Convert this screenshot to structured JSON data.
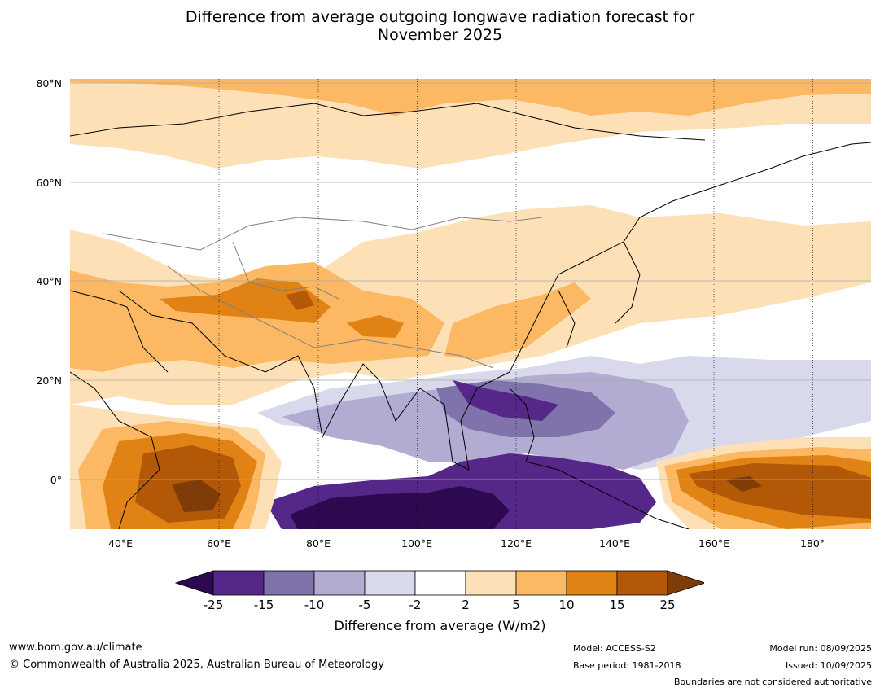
{
  "title_line1": "Difference from average outgoing longwave radiation forecast for",
  "title_line2": "November 2025",
  "lat_labels": [
    "80°N",
    "60°N",
    "40°N",
    "20°N",
    "0°"
  ],
  "lon_labels": [
    "40°E",
    "60°E",
    "80°E",
    "100°E",
    "120°E",
    "140°E",
    "160°E",
    "180°"
  ],
  "colorbar": {
    "title": "Difference from average (W/m2)",
    "ticks": [
      "-25",
      "-15",
      "-10",
      "-5",
      "-2",
      "2",
      "5",
      "10",
      "15",
      "25"
    ],
    "colors": [
      "#2d0a4f",
      "#542788",
      "#8073ac",
      "#b2abd2",
      "#d8daeb",
      "#ffffff",
      "#fee0b6",
      "#fdb863",
      "#e08214",
      "#b35806",
      "#7f3b08"
    ]
  },
  "footer": {
    "website": "www.bom.gov.au/climate",
    "copyright": "© Commonwealth of Australia 2025, Australian Bureau of Meteorology",
    "model": "Model: ACCESS-S2",
    "base_period": "Base period: 1981-2018",
    "model_run": "Model run: 08/09/2025",
    "issued": "Issued: 10/09/2025",
    "disclaimer": "Boundaries are not considered authoritative"
  }
}
